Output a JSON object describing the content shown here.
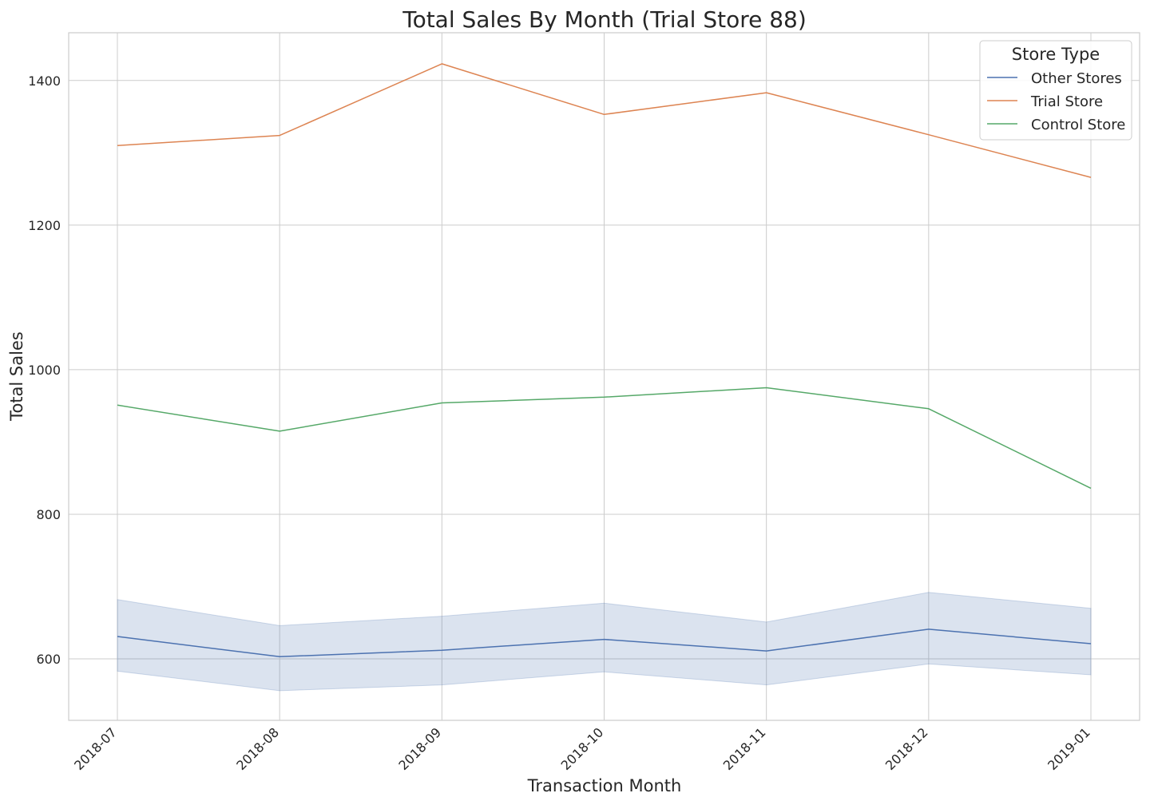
{
  "chart_data": {
    "type": "line",
    "title": "Total Sales By Month (Trial Store 88)",
    "xlabel": "Transaction Month",
    "ylabel": "Total Sales",
    "categories": [
      "2018-07",
      "2018-08",
      "2018-09",
      "2018-10",
      "2018-11",
      "2018-12",
      "2019-01"
    ],
    "yticks": [
      600,
      800,
      1000,
      1200,
      1400
    ],
    "ylim": [
      515,
      1466
    ],
    "grid": true,
    "legend": {
      "title": "Store Type",
      "placement": "top-right"
    },
    "series": [
      {
        "name": "Other Stores",
        "color": "#4c72b0",
        "values": [
          631,
          603,
          612,
          627,
          611,
          641,
          621
        ],
        "band": {
          "lower": [
            583,
            556,
            564,
            582,
            564,
            593,
            578
          ],
          "upper": [
            682,
            646,
            659,
            677,
            651,
            692,
            670
          ]
        }
      },
      {
        "name": "Trial Store",
        "color": "#dd8452",
        "values": [
          1310,
          1324,
          1423,
          1353,
          1383,
          1325,
          1266
        ]
      },
      {
        "name": "Control Store",
        "color": "#55a868",
        "values": [
          951,
          915,
          954,
          962,
          975,
          946,
          836
        ]
      }
    ]
  }
}
